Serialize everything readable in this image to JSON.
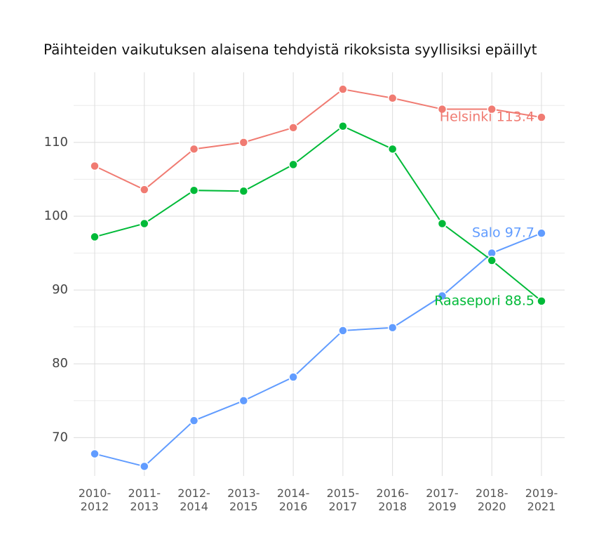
{
  "chart_data": {
    "type": "line",
    "title": "Päihteiden vaikutuksen alaisena tehdyistä rikoksista syyllisiksi epäillyt",
    "categories": [
      "2010-\n2012",
      "2011-\n2013",
      "2012-\n2014",
      "2013-\n2015",
      "2014-\n2016",
      "2015-\n2017",
      "2016-\n2018",
      "2017-\n2019",
      "2018-\n2020",
      "2019-\n2021"
    ],
    "series": [
      {
        "name": "Helsinki",
        "end_label": "Helsinki 113.4",
        "color": "#f07b72",
        "values": [
          106.8,
          103.6,
          109.1,
          110.0,
          112.0,
          117.2,
          116.0,
          114.5,
          114.5,
          113.4
        ]
      },
      {
        "name": "Salo",
        "end_label": "Salo 97.7",
        "color": "#619cff",
        "values": [
          67.8,
          66.1,
          72.3,
          75.0,
          78.2,
          84.5,
          84.9,
          89.2,
          95.0,
          97.7
        ]
      },
      {
        "name": "Raasepori",
        "end_label": "Raasepori 88.5",
        "color": "#00ba38",
        "values": [
          97.2,
          99.0,
          103.5,
          103.4,
          107.0,
          112.2,
          109.1,
          99.0,
          94.0,
          88.5
        ]
      }
    ],
    "ylim": [
      64.8,
      119.5
    ],
    "yticks": [
      70,
      80,
      90,
      100,
      110
    ],
    "minor_yticks": [
      75,
      85,
      95,
      105,
      115
    ],
    "grid": true
  }
}
